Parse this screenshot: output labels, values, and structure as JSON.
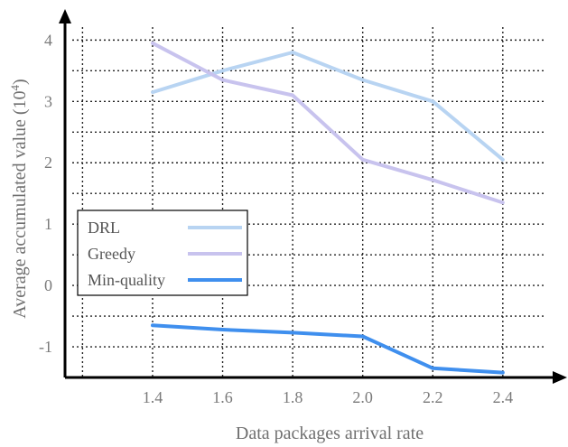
{
  "chart_data": {
    "type": "line",
    "xlabel": "Data packages arrival rate",
    "ylabel": "Average accumulated value (10",
    "ylabel_sup": "4",
    "ylabel_close": ")",
    "xlim": [
      1.15,
      2.55
    ],
    "ylim": [
      -1.5,
      4.3
    ],
    "x": [
      1.4,
      1.6,
      1.8,
      2.0,
      2.2,
      2.4
    ],
    "xticks": [
      "1.4",
      "1.6",
      "1.8",
      "2.0",
      "2.2",
      "2.4"
    ],
    "yticks": [
      {
        "value": 4,
        "label": "4"
      },
      {
        "value": 3,
        "label": "3"
      },
      {
        "value": 2,
        "label": "2"
      },
      {
        "value": 1,
        "label": "1"
      },
      {
        "value": 0,
        "label": "0"
      },
      {
        "value": -1,
        "label": "-1"
      }
    ],
    "grid": true,
    "legend_position": "lower-left",
    "series": [
      {
        "name": "DRL",
        "color": "#b8d4f2",
        "values": [
          3.15,
          3.5,
          3.8,
          3.35,
          3.0,
          2.05
        ]
      },
      {
        "name": "Greedy",
        "color": "#c8c3ee",
        "values": [
          3.95,
          3.35,
          3.1,
          2.05,
          1.72,
          1.35
        ]
      },
      {
        "name": "Min-quality",
        "color": "#3f8fee",
        "values": [
          -0.65,
          -0.72,
          -0.77,
          -0.83,
          -1.35,
          -1.42
        ]
      }
    ]
  }
}
